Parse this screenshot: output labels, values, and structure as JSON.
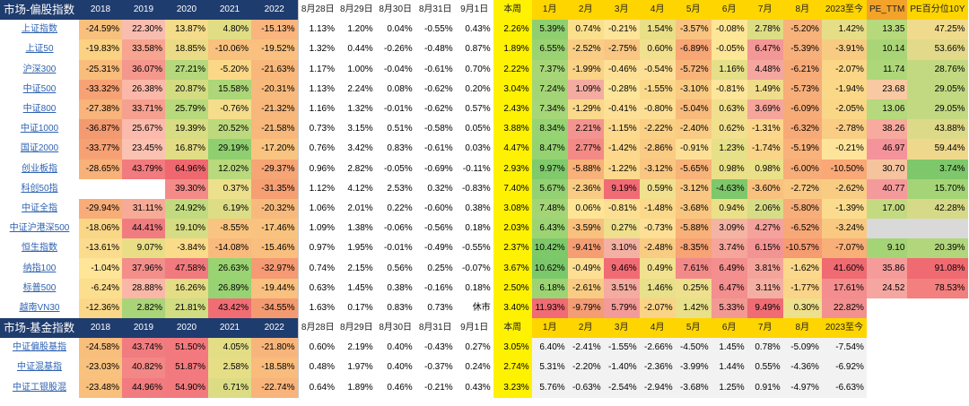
{
  "stock_table": {
    "title": "市场-偏股指数",
    "headers": [
      "2018",
      "2019",
      "2020",
      "2021",
      "2022",
      "8月28日",
      "8月29日",
      "8月30日",
      "8月31日",
      "9月1日",
      "本周",
      "1月",
      "2月",
      "3月",
      "4月",
      "5月",
      "6月",
      "7月",
      "8月",
      "2023至今",
      "PE_TTM",
      "PE百分位10Y"
    ],
    "rows": [
      {
        "name": "上证指数",
        "cells": [
          "-24.59%",
          "22.30%",
          "13.87%",
          "4.80%",
          "-15.13%",
          "1.13%",
          "1.20%",
          "0.04%",
          "-0.55%",
          "0.43%",
          "2.26%",
          "5.39%",
          "0.74%",
          "-0.21%",
          "1.54%",
          "-3.57%",
          "-0.08%",
          "2.78%",
          "-5.20%",
          "1.42%",
          "13.35",
          "47.25%"
        ],
        "colors": [
          "#f8c07c",
          "#f9bdb0",
          "#f4dc8a",
          "#e0dd85",
          "#f9b57d",
          "",
          "",
          "",
          "",
          "",
          "#fff200",
          "#8fcf6f",
          "#fbe08c",
          "#fde59a",
          "#e9df86",
          "#f8c47f",
          "#fee697",
          "#dddd84",
          "#f7b37a",
          "#e6de87",
          "#b6d97c",
          "#f0db8c"
        ]
      },
      {
        "name": "上证50",
        "cells": [
          "-19.83%",
          "33.58%",
          "18.85%",
          "-10.06%",
          "-19.52%",
          "1.32%",
          "0.44%",
          "-0.26%",
          "-0.48%",
          "0.87%",
          "1.89%",
          "6.55%",
          "-2.52%",
          "-2.75%",
          "0.60%",
          "-6.89%",
          "-0.05%",
          "6.47%",
          "-5.39%",
          "-3.91%",
          "10.14",
          "53.66%"
        ],
        "colors": [
          "#fad282",
          "#f7a490",
          "#ecdb86",
          "#f9c17e",
          "#f9c07f",
          "",
          "",
          "",
          "",
          "",
          "#fff200",
          "#9ad372",
          "#f9ce84",
          "#f9c783",
          "#f1e18e",
          "#f7a674",
          "#fee697",
          "#f39896",
          "#f7b07a",
          "#f8cb82",
          "#a9d577",
          "#e3d98b"
        ]
      },
      {
        "name": "沪深300",
        "cells": [
          "-25.31%",
          "36.07%",
          "27.21%",
          "-5.20%",
          "-21.63%",
          "1.17%",
          "1.00%",
          "-0.04%",
          "-0.61%",
          "0.70%",
          "2.22%",
          "7.37%",
          "-1.99%",
          "-0.46%",
          "-0.54%",
          "-5.72%",
          "1.16%",
          "4.48%",
          "-6.21%",
          "-2.07%",
          "11.74",
          "28.76%"
        ],
        "colors": [
          "#f8bc7b",
          "#f4978d",
          "#b4d87b",
          "#fbd888",
          "#f8b77b",
          "",
          "",
          "",
          "",
          "",
          "#fff200",
          "#a6d677",
          "#fad386",
          "#fde096",
          "#fde096",
          "#f8b479",
          "#e4df88",
          "#f4a69f",
          "#f7ab78",
          "#fad686",
          "#aed77a",
          "#c3d981"
        ]
      },
      {
        "name": "中证500",
        "cells": [
          "-33.32%",
          "26.38%",
          "20.87%",
          "15.58%",
          "-20.31%",
          "1.13%",
          "2.24%",
          "0.08%",
          "-0.62%",
          "0.20%",
          "3.04%",
          "7.24%",
          "1.09%",
          "-0.28%",
          "-1.55%",
          "-3.10%",
          "-0.81%",
          "1.49%",
          "-5.73%",
          "-1.94%",
          "23.68",
          "29.05%"
        ],
        "colors": [
          "#f7a274",
          "#fbb8a8",
          "#d4dc82",
          "#acd678",
          "#f8ba7c",
          "",
          "",
          "",
          "",
          "",
          "#fff200",
          "#a3d577",
          "#f4aca1",
          "#fde59a",
          "#fbd98b",
          "#f9ca82",
          "#fde59a",
          "#f0dd8b",
          "#f7ae79",
          "#fad888",
          "#f9c9a3",
          "#c3d981"
        ]
      },
      {
        "name": "中证800",
        "cells": [
          "-27.38%",
          "33.71%",
          "25.79%",
          "-0.76%",
          "-21.32%",
          "1.16%",
          "1.32%",
          "-0.01%",
          "-0.62%",
          "0.57%",
          "2.43%",
          "7.34%",
          "-1.29%",
          "-0.41%",
          "-0.80%",
          "-5.04%",
          "0.63%",
          "3.69%",
          "-6.09%",
          "-2.05%",
          "13.06",
          "29.05%"
        ],
        "colors": [
          "#f8b47a",
          "#f6a08f",
          "#b8d97c",
          "#f4dd8b",
          "#f8b87b",
          "",
          "",
          "",
          "",
          "",
          "#fff200",
          "#a5d677",
          "#fbd98a",
          "#fde096",
          "#fddf94",
          "#f8ba7b",
          "#f0e08d",
          "#f5a59a",
          "#f7ac78",
          "#fad687",
          "#b5d97c",
          "#c3d981"
        ]
      },
      {
        "name": "中证1000",
        "cells": [
          "-36.87%",
          "25.67%",
          "19.39%",
          "20.52%",
          "-21.58%",
          "0.73%",
          "3.15%",
          "0.51%",
          "-0.58%",
          "0.05%",
          "3.88%",
          "8.34%",
          "2.21%",
          "-1.15%",
          "-2.22%",
          "-2.40%",
          "0.62%",
          "-1.31%",
          "-6.32%",
          "-2.78%",
          "38.26",
          "43.88%"
        ],
        "colors": [
          "#f39a71",
          "#fbbaab",
          "#d8dc83",
          "#bcd97d",
          "#f8b87b",
          "",
          "",
          "",
          "",
          "",
          "#fff200",
          "#96d373",
          "#f39490",
          "#fcd98c",
          "#fad084",
          "#f9cb83",
          "#f1e08d",
          "#fcd68b",
          "#f7aa77",
          "#f9cd84",
          "#f7aa9d",
          "#dcda89"
        ]
      },
      {
        "name": "国证2000",
        "cells": [
          "-33.77%",
          "23.45%",
          "16.87%",
          "29.19%",
          "-17.20%",
          "0.76%",
          "3.42%",
          "0.83%",
          "-0.61%",
          "0.03%",
          "4.47%",
          "8.47%",
          "2.77%",
          "-1.42%",
          "-2.86%",
          "-0.91%",
          "1.23%",
          "-1.74%",
          "-5.19%",
          "-0.21%",
          "46.97",
          "59.44%"
        ],
        "colors": [
          "#f6a173",
          "#fbc1b1",
          "#e2dd85",
          "#8fcf6f",
          "#f9c480",
          "",
          "",
          "",
          "",
          "",
          "#fff200",
          "#95d272",
          "#f38a85",
          "#fbd88b",
          "#f9cb83",
          "#fde095",
          "#e6e089",
          "#fad488",
          "#f8b27a",
          "#fee49a",
          "#f4949a",
          "#eed88c"
        ]
      },
      {
        "name": "创业板指",
        "cells": [
          "-28.65%",
          "43.79%",
          "64.96%",
          "12.02%",
          "-29.37%",
          "0.96%",
          "2.82%",
          "-0.05%",
          "-0.69%",
          "-0.11%",
          "2.93%",
          "9.97%",
          "-5.88%",
          "-1.22%",
          "-3.12%",
          "-5.65%",
          "0.98%",
          "0.98%",
          "-6.00%",
          "-10.50%",
          "30.70",
          "3.74%"
        ],
        "colors": [
          "#f8b179",
          "#f17b7f",
          "#f0686f",
          "#b8d97c",
          "#f6a575",
          "",
          "",
          "",
          "",
          "",
          "#fff200",
          "#7fca6b",
          "#f8b179",
          "#fcd98c",
          "#f9c781",
          "#f8b379",
          "#eae088",
          "#eae088",
          "#f7ad78",
          "#f9a876",
          "#f6c39f",
          "#7ec86b"
        ]
      },
      {
        "name": "科创50指",
        "cells": [
          "",
          "",
          "39.30%",
          "0.37%",
          "-31.35%",
          "1.12%",
          "4.12%",
          "2.53%",
          "0.32%",
          "-0.83%",
          "7.40%",
          "5.67%",
          "-2.36%",
          "9.19%",
          "0.59%",
          "-3.12%",
          "-4.63%",
          "-3.60%",
          "-2.72%",
          "-2.62%",
          "40.77",
          "15.70%"
        ],
        "colors": [
          "#ffffff",
          "#ffffff",
          "#f48b88",
          "#ede08c",
          "#f59f73",
          "",
          "",
          "",
          "",
          "",
          "#fff200",
          "#93d173",
          "#f9cc84",
          "#f16b75",
          "#f1e18e",
          "#f9c781",
          "#7ec86b",
          "#f9c17e",
          "#f9c882",
          "#f9cc84",
          "#f59a9a",
          "#a5d476"
        ]
      },
      {
        "name": "中证全指",
        "cells": [
          "-29.94%",
          "31.11%",
          "24.92%",
          "6.19%",
          "-20.32%",
          "1.06%",
          "2.01%",
          "0.22%",
          "-0.60%",
          "0.38%",
          "3.08%",
          "7.48%",
          "0.06%",
          "-0.81%",
          "-1.48%",
          "-3.68%",
          "0.94%",
          "2.06%",
          "-5.80%",
          "-1.39%",
          "17.00",
          "42.28%"
        ],
        "colors": [
          "#f8ad78",
          "#f7ab96",
          "#c1da7f",
          "#dcdd85",
          "#f8ba7c",
          "",
          "",
          "",
          "",
          "",
          "#fff200",
          "#a3d577",
          "#fee596",
          "#fddf94",
          "#fbd98a",
          "#f9c680",
          "#eae088",
          "#d7dd86",
          "#f7ae79",
          "#fbdc8e",
          "#c4da81",
          "#d6da88"
        ]
      },
      {
        "name": "中证沪港深500",
        "cells": [
          "-18.06%",
          "44.41%",
          "19.10%",
          "-8.55%",
          "-17.46%",
          "1.09%",
          "1.38%",
          "-0.06%",
          "-0.56%",
          "0.18%",
          "2.03%",
          "6.43%",
          "-3.59%",
          "0.27%",
          "-0.73%",
          "-5.88%",
          "3.09%",
          "4.27%",
          "-6.52%",
          "-3.24%",
          "",
          ""
        ],
        "colors": [
          "#fad687",
          "#f17c80",
          "#d5dc83",
          "#f9c47f",
          "#f9c37f",
          "",
          "",
          "",
          "",
          "",
          "#fff200",
          "#9cd473",
          "#f9c17e",
          "#eee08d",
          "#fde096",
          "#f8b178",
          "#f4b4a4",
          "#f6a29c",
          "#f7a877",
          "#f9c981",
          "#d9d9d9",
          "#d9d9d9"
        ]
      },
      {
        "name": "恒生指数",
        "cells": [
          "-13.61%",
          "9.07%",
          "-3.84%",
          "-14.08%",
          "-15.46%",
          "0.97%",
          "1.95%",
          "-0.01%",
          "-0.49%",
          "-0.55%",
          "2.37%",
          "10.42%",
          "-9.41%",
          "3.10%",
          "-2.48%",
          "-8.35%",
          "3.74%",
          "6.15%",
          "-10.57%",
          "-7.07%",
          "9.10",
          "20.39%"
        ],
        "colors": [
          "#fbdc8e",
          "#e9de86",
          "#fadb89",
          "#f9bb7d",
          "#f9bf7e",
          "",
          "",
          "",
          "",
          "",
          "#fff200",
          "#7dc96a",
          "#f59e74",
          "#f3b1a3",
          "#f9cc84",
          "#f7a373",
          "#f5a59a",
          "#f39494",
          "#f69c71",
          "#f8af78",
          "#a5d476",
          "#b1d67b"
        ]
      },
      {
        "name": "纳指100",
        "cells": [
          "-1.04%",
          "37.96%",
          "47.58%",
          "26.63%",
          "-32.97%",
          "0.74%",
          "2.15%",
          "0.56%",
          "0.25%",
          "-0.07%",
          "3.67%",
          "10.62%",
          "-0.49%",
          "9.46%",
          "0.49%",
          "7.61%",
          "6.49%",
          "3.81%",
          "-1.62%",
          "41.60%",
          "35.86",
          "91.08%"
        ],
        "colors": [
          "#fee597",
          "#f38e8a",
          "#f17a7e",
          "#9ad372",
          "#f59a72",
          "",
          "",
          "",
          "",
          "",
          "#fff200",
          "#7bc86a",
          "#fddf94",
          "#f16b75",
          "#f2e18e",
          "#f38a8a",
          "#f38f8e",
          "#f5a49b",
          "#fbd88b",
          "#f06a72",
          "#f59b9a",
          "#f06a72"
        ]
      },
      {
        "name": "标普500",
        "cells": [
          "-6.24%",
          "28.88%",
          "16.26%",
          "26.89%",
          "-19.44%",
          "0.63%",
          "1.45%",
          "0.38%",
          "-0.16%",
          "0.18%",
          "2.50%",
          "6.18%",
          "-2.61%",
          "3.51%",
          "1.46%",
          "0.25%",
          "6.47%",
          "3.11%",
          "-1.77%",
          "17.61%",
          "24.52",
          "78.53%"
        ],
        "colors": [
          "#fcde8f",
          "#fab7a7",
          "#e4dd86",
          "#98d273",
          "#f9c07f",
          "",
          "",
          "",
          "",
          "",
          "#fff200",
          "#9cd473",
          "#f9cc84",
          "#f4aba0",
          "#e8e08a",
          "#efe08e",
          "#f38f8e",
          "#f3b0a2",
          "#fad488",
          "#f48d8d",
          "#f6a6a0",
          "#f3807e"
        ]
      },
      {
        "name": "越南VN30",
        "cells": [
          "-12.36%",
          "2.82%",
          "21.81%",
          "43.42%",
          "-34.55%",
          "1.63%",
          "0.17%",
          "0.83%",
          "0.73%",
          "休市",
          "3.40%",
          "11.93%",
          "-9.79%",
          "5.79%",
          "-2.07%",
          "1.42%",
          "5.33%",
          "9.49%",
          "0.30%",
          "22.82%",
          "",
          ""
        ],
        "colors": [
          "#fbd889",
          "#a9d477",
          "#d2dc82",
          "#f06d74",
          "#f49a71",
          "",
          "",
          "",
          "",
          "",
          "#fff200",
          "#f06b73",
          "#f49c74",
          "#f39b98",
          "#fad386",
          "#e8e08a",
          "#f39994",
          "#f06c74",
          "#eee08d",
          "#f39190",
          "#ffffff",
          "#ffffff"
        ]
      }
    ]
  },
  "fund_table": {
    "title": "市场-基金指数",
    "headers": [
      "2018",
      "2019",
      "2020",
      "2021",
      "2022",
      "8月28日",
      "8月29日",
      "8月30日",
      "8月31日",
      "9月1日",
      "本周",
      "1月",
      "2月",
      "3月",
      "4月",
      "5月",
      "6月",
      "7月",
      "8月",
      "2023至今"
    ],
    "rows": [
      {
        "name": "中证偏股基指",
        "cells": [
          "-24.58%",
          "43.74%",
          "51.50%",
          "4.05%",
          "-21.80%",
          "0.60%",
          "2.19%",
          "0.40%",
          "-0.43%",
          "0.27%",
          "3.05%",
          "6.40%",
          "-2.41%",
          "-1.55%",
          "-2.66%",
          "-4.50%",
          "1.45%",
          "0.78%",
          "-5.09%",
          "-7.54%"
        ],
        "colors": [
          "#f8be7c",
          "#f17c80",
          "#f27a7e",
          "#e3dd86",
          "#f8b57b",
          "",
          "",
          "",
          "",
          "",
          "#fff200",
          "",
          "",
          "",
          "",
          "",
          "",
          "",
          "",
          ""
        ]
      },
      {
        "name": "中证混基指",
        "cells": [
          "-23.03%",
          "40.82%",
          "51.87%",
          "2.58%",
          "-18.58%",
          "0.48%",
          "1.97%",
          "0.40%",
          "-0.37%",
          "0.24%",
          "2.74%",
          "5.31%",
          "-2.20%",
          "-1.40%",
          "-2.36%",
          "-3.99%",
          "1.44%",
          "0.55%",
          "-4.36%",
          "-6.92%"
        ],
        "colors": [
          "#f8c17d",
          "#f38786",
          "#f27a7e",
          "#e6de87",
          "#f9bc7d",
          "",
          "",
          "",
          "",
          "",
          "#fff200",
          "",
          "",
          "",
          "",
          "",
          "",
          "",
          "",
          ""
        ]
      },
      {
        "name": "中证工银股混",
        "cells": [
          "-23.48%",
          "44.96%",
          "54.90%",
          "6.71%",
          "-22.74%",
          "0.64%",
          "1.89%",
          "0.46%",
          "-0.21%",
          "0.43%",
          "3.23%",
          "5.76%",
          "-0.63%",
          "-2.54%",
          "-2.94%",
          "-3.68%",
          "1.25%",
          "0.91%",
          "-4.97%",
          "-6.63%"
        ],
        "colors": [
          "#f8c07c",
          "#f17b7f",
          "#f27a7e",
          "#dcdc85",
          "#f8b47b",
          "",
          "",
          "",
          "",
          "",
          "#fff200",
          "",
          "",
          "",
          "",
          "",
          "",
          "",
          "",
          ""
        ]
      }
    ]
  }
}
